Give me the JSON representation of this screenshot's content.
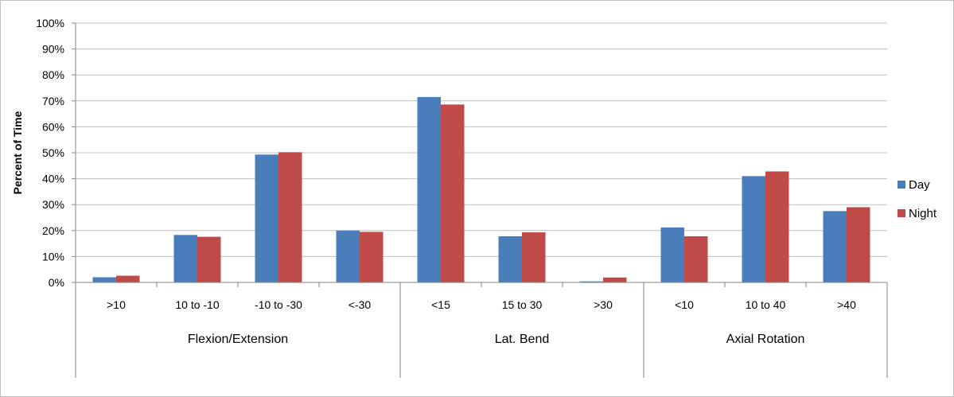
{
  "chart_data": {
    "type": "bar",
    "title": "",
    "xlabel": "",
    "ylabel": "Percent of Time",
    "ylim": [
      0,
      100
    ],
    "y_tick_format": "percent",
    "y_ticks": [
      "0%",
      "10%",
      "20%",
      "30%",
      "40%",
      "50%",
      "60%",
      "70%",
      "80%",
      "90%",
      "100%"
    ],
    "grid": true,
    "legend_position": "right",
    "categories": [
      ">10",
      "10 to -10",
      "-10 to -30",
      "<-30",
      "<15",
      "15 to 30",
      ">30",
      "<10",
      "10 to 40",
      ">40"
    ],
    "groups": [
      {
        "name": "Flexion/Extension",
        "categories": [
          ">10",
          "10 to -10",
          "-10 to -30",
          "<-30"
        ]
      },
      {
        "name": "Lat. Bend",
        "categories": [
          "<15",
          "15 to 30",
          ">30"
        ]
      },
      {
        "name": "Axial Rotation",
        "categories": [
          "<10",
          "10 to 40",
          ">40"
        ]
      }
    ],
    "series": [
      {
        "name": "Day",
        "color": "#4a7ebb",
        "values": [
          2,
          18.3,
          49.3,
          20,
          71.5,
          17.8,
          0.4,
          21.2,
          41,
          27.5
        ]
      },
      {
        "name": "Night",
        "color": "#be4b48",
        "values": [
          2.6,
          17.6,
          50.2,
          19.5,
          68.6,
          19.3,
          1.9,
          17.8,
          42.8,
          29
        ]
      }
    ]
  }
}
